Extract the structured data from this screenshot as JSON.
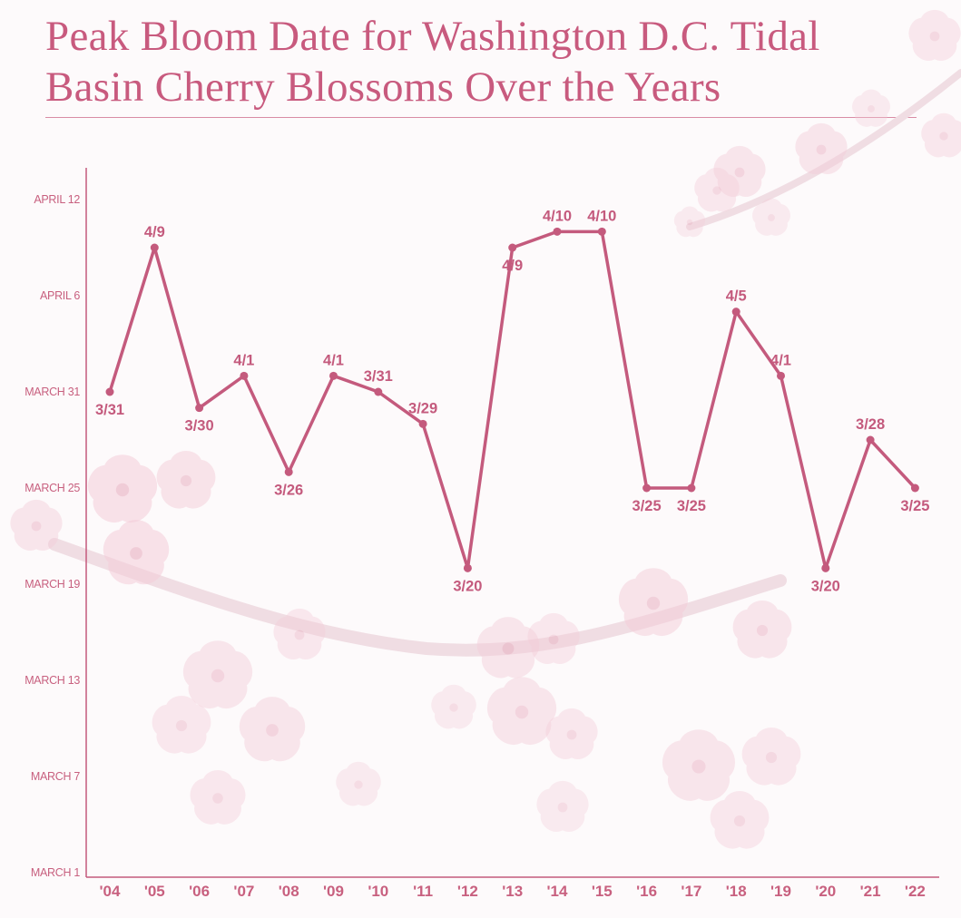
{
  "title_lines": [
    "Peak Bloom Date for Washington D.C. Tidal",
    "Basin Cherry Blossoms Over the Years"
  ],
  "colors": {
    "line": "#c45a7d",
    "axis_text": "#c8607f",
    "title": "#c85a7e",
    "blossom": "#f4cdd9"
  },
  "chart_data": {
    "type": "line",
    "title": "Peak Bloom Date for Washington D.C. Tidal Basin Cherry Blossoms Over the Years",
    "xlabel": "",
    "ylabel": "",
    "categories": [
      "'04",
      "'05",
      "'06",
      "'07",
      "'08",
      "'09",
      "'10",
      "'11",
      "'12",
      "'13",
      "'14",
      "'15",
      "'16",
      "'17",
      "'18",
      "'19",
      "'20",
      "'21",
      "'22"
    ],
    "series": [
      {
        "values": [
          "03-31",
          "04-09",
          "03-30",
          "04-01",
          "03-26",
          "04-01",
          "03-31",
          "03-29",
          "03-20",
          "04-09",
          "04-10",
          "04-10",
          "03-25",
          "03-25",
          "04-05",
          "04-01",
          "03-20",
          "03-28",
          "03-25"
        ],
        "point_labels": [
          "3/31",
          "4/9",
          "3/30",
          "4/1",
          "3/26",
          "4/1",
          "3/31",
          "3/29",
          "3/20",
          "4/9",
          "4/10",
          "4/10",
          "3/25",
          "3/25",
          "4/5",
          "4/1",
          "3/20",
          "3/28",
          "3/25"
        ]
      }
    ],
    "yticks": [
      {
        "date": "03-01",
        "label": "MARCH 1"
      },
      {
        "date": "03-07",
        "label": "MARCH 7"
      },
      {
        "date": "03-13",
        "label": "MARCH 13"
      },
      {
        "date": "03-19",
        "label": "MARCH 19"
      },
      {
        "date": "03-25",
        "label": "MARCH 25"
      },
      {
        "date": "03-31",
        "label": "MARCH 31"
      },
      {
        "date": "04-06",
        "label": "APRIL 6"
      },
      {
        "date": "04-12",
        "label": "APRIL 12"
      }
    ],
    "ylim": [
      "03-01",
      "04-12"
    ],
    "grid": false,
    "legend": "none"
  }
}
